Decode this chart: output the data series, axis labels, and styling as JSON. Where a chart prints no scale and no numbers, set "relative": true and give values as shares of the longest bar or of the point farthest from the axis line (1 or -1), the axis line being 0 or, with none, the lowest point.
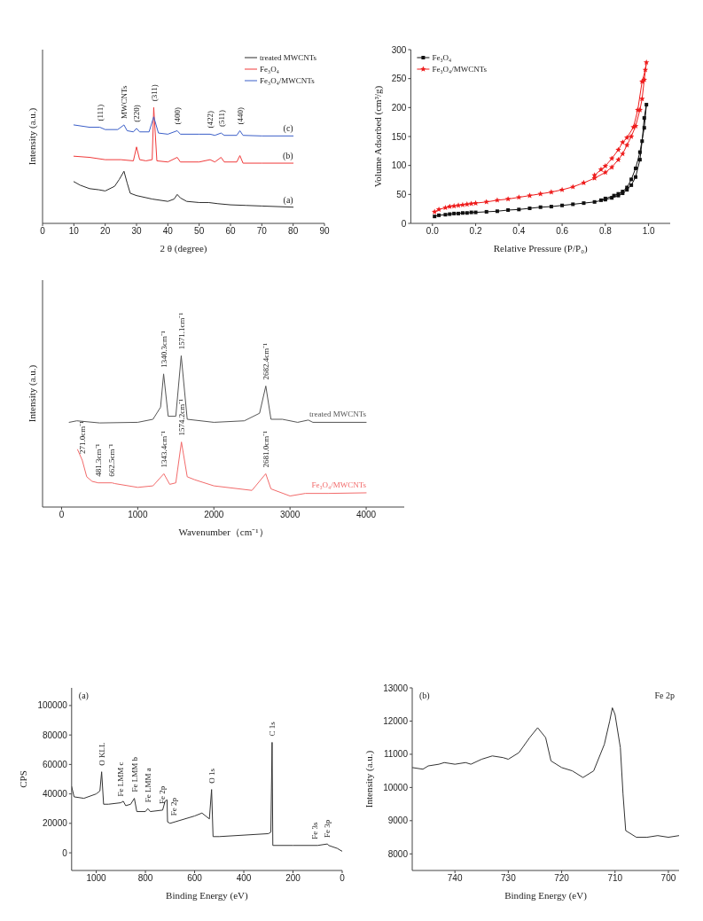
{
  "chart_data": [
    {
      "type": "line",
      "relative": true,
      "xlabel": "2 θ (degree)",
      "ylabel": "Intensity (a.u.)",
      "xlim": [
        0,
        90
      ],
      "xticks": [
        0,
        10,
        20,
        30,
        40,
        50,
        60,
        70,
        80,
        90
      ],
      "legend": "top right",
      "series": [
        {
          "name": "treated MWCNTs",
          "color": "#2b2b2b",
          "x": [
            10,
            12,
            15,
            18,
            20,
            23,
            24.5,
            26,
            27,
            28,
            30,
            35,
            40,
            42,
            43,
            44,
            46,
            50,
            53,
            56,
            60,
            65,
            70,
            75,
            80
          ],
          "values": [
            0.36,
            0.33,
            0.3,
            0.29,
            0.28,
            0.32,
            0.38,
            0.45,
            0.35,
            0.26,
            0.24,
            0.21,
            0.19,
            0.21,
            0.25,
            0.22,
            0.19,
            0.18,
            0.18,
            0.17,
            0.16,
            0.155,
            0.15,
            0.145,
            0.14
          ]
        },
        {
          "name": "Fe₃O₄",
          "color": "#f03a3a",
          "x": [
            10,
            15,
            20,
            25,
            29,
            30,
            31,
            33,
            35,
            35.5,
            36.5,
            40,
            43,
            44,
            50,
            53.5,
            55,
            57,
            58,
            62,
            63,
            64,
            70,
            75,
            80
          ],
          "values": [
            0.58,
            0.57,
            0.55,
            0.55,
            0.54,
            0.66,
            0.55,
            0.54,
            0.55,
            1.0,
            0.54,
            0.53,
            0.57,
            0.53,
            0.53,
            0.55,
            0.53,
            0.57,
            0.53,
            0.53,
            0.585,
            0.52,
            0.52,
            0.52,
            0.52
          ]
        },
        {
          "name": "Fe₃O₄/MWCNTs",
          "color": "#3a5ec8",
          "x": [
            10,
            15,
            18.3,
            20,
            24,
            26,
            27,
            29,
            30,
            31,
            34,
            35.5,
            37,
            40,
            43,
            44,
            50,
            53.5,
            55,
            57,
            58,
            62,
            63,
            64,
            70,
            75,
            80
          ],
          "values": [
            0.85,
            0.83,
            0.83,
            0.81,
            0.81,
            0.85,
            0.8,
            0.79,
            0.82,
            0.79,
            0.79,
            0.92,
            0.78,
            0.77,
            0.8,
            0.77,
            0.77,
            0.77,
            0.76,
            0.78,
            0.76,
            0.76,
            0.8,
            0.76,
            0.755,
            0.755,
            0.755
          ]
        }
      ],
      "annotations": [
        {
          "text": "(111)",
          "x": 18.3,
          "y": 0.83
        },
        {
          "text": "MWCNTs",
          "x": 26,
          "y": 0.85
        },
        {
          "text": "(220)",
          "x": 30,
          "y": 0.82
        },
        {
          "text": "(311)",
          "x": 35.5,
          "y": 1.0
        },
        {
          "text": "(400)",
          "x": 43,
          "y": 0.8
        },
        {
          "text": "(422)",
          "x": 53.5,
          "y": 0.77
        },
        {
          "text": "(511)",
          "x": 57,
          "y": 0.78
        },
        {
          "text": "(440)",
          "x": 63,
          "y": 0.8
        },
        "(a)",
        "(b)",
        "(c)"
      ]
    },
    {
      "type": "line",
      "xlabel": "Relative Pressure (P/P₀)",
      "ylabel": "Volume Adsorbed (cm³/g)",
      "xlim": [
        -0.1,
        1.1
      ],
      "xticks": [
        {
          "value": 0,
          "label": "0.0"
        },
        {
          "value": 0.2,
          "label": "0.2"
        },
        {
          "value": 0.4,
          "label": "0.4"
        },
        {
          "value": 0.6,
          "label": "0.6"
        },
        {
          "value": 0.8,
          "label": "0.8"
        },
        {
          "value": 1,
          "label": "1.0"
        }
      ],
      "ylim": [
        0,
        300
      ],
      "yticks": [
        0,
        50,
        100,
        150,
        200,
        250,
        300
      ],
      "legend": "top left",
      "series": [
        {
          "name": "Fe₃O₄",
          "color": "#111111",
          "marker": "square",
          "x": [
            0.01,
            0.03,
            0.06,
            0.08,
            0.1,
            0.12,
            0.14,
            0.16,
            0.18,
            0.2,
            0.25,
            0.3,
            0.35,
            0.4,
            0.45,
            0.5,
            0.55,
            0.6,
            0.65,
            0.7,
            0.75,
            0.8,
            0.83,
            0.86,
            0.88,
            0.9,
            0.92,
            0.94,
            0.96,
            0.97,
            0.98,
            0.99,
            0.98,
            0.96,
            0.94,
            0.92,
            0.9,
            0.88,
            0.86,
            0.84,
            0.8,
            0.78
          ],
          "values": [
            12,
            14,
            15,
            16,
            17,
            17,
            18,
            18,
            19,
            19,
            20,
            21,
            23,
            24,
            26,
            28,
            29,
            31,
            33,
            35,
            37,
            41,
            44,
            48,
            52,
            58,
            66,
            80,
            110,
            142,
            182,
            205,
            165,
            123,
            95,
            76,
            62,
            55,
            51,
            48,
            43,
            40
          ]
        },
        {
          "name": "Fe₃O₄/MWCNTs",
          "color": "#ee1c1c",
          "marker": "star",
          "x": [
            0.01,
            0.03,
            0.06,
            0.08,
            0.1,
            0.12,
            0.14,
            0.16,
            0.18,
            0.2,
            0.25,
            0.3,
            0.35,
            0.4,
            0.45,
            0.5,
            0.55,
            0.6,
            0.65,
            0.7,
            0.75,
            0.8,
            0.83,
            0.86,
            0.88,
            0.9,
            0.92,
            0.94,
            0.96,
            0.97,
            0.98,
            0.99,
            0.985,
            0.97,
            0.95,
            0.93,
            0.9,
            0.88,
            0.86,
            0.83,
            0.8,
            0.78,
            0.75
          ],
          "values": [
            20,
            24,
            27,
            29,
            30,
            31,
            32,
            33,
            34,
            35,
            37,
            40,
            42,
            45,
            48,
            51,
            54,
            58,
            63,
            70,
            78,
            88,
            97,
            110,
            120,
            135,
            150,
            168,
            196,
            215,
            248,
            278,
            265,
            245,
            196,
            166,
            148,
            140,
            127,
            112,
            99,
            93,
            83
          ]
        }
      ]
    },
    {
      "type": "line",
      "relative": true,
      "xlabel": "Wavenumber（cm⁻¹）",
      "ylabel": "Intensity (a.u.)",
      "xlim": [
        -250,
        4500
      ],
      "xticks": [
        0,
        1000,
        2000,
        3000,
        4000
      ],
      "legend": false,
      "series": [
        {
          "name": "treated MWCNTs",
          "color": "#555555",
          "x": [
            100,
            200,
            500,
            1000,
            1200,
            1300,
            1340,
            1400,
            1500,
            1571,
            1650,
            2000,
            2400,
            2600,
            2682,
            2750,
            2900,
            2950,
            3100,
            3240,
            3300,
            4000
          ],
          "values": [
            0.56,
            0.57,
            0.556,
            0.56,
            0.58,
            0.66,
            0.88,
            0.6,
            0.6,
            1.0,
            0.58,
            0.56,
            0.57,
            0.62,
            0.8,
            0.58,
            0.58,
            0.575,
            0.56,
            0.575,
            0.56,
            0.56
          ]
        },
        {
          "name": "Fe₃O₄/MWCNTs",
          "color": "#f26a6a",
          "x": [
            210,
            271,
            330,
            400,
            481,
            600,
            662,
            700,
            1000,
            1200,
            1343,
            1420,
            1500,
            1574,
            1650,
            1750,
            2000,
            2500,
            2681,
            2750,
            3000,
            3200,
            3500,
            4000
          ],
          "values": [
            0.38,
            0.31,
            0.2,
            0.17,
            0.16,
            0.16,
            0.16,
            0.155,
            0.13,
            0.14,
            0.22,
            0.15,
            0.16,
            0.43,
            0.2,
            0.18,
            0.14,
            0.11,
            0.22,
            0.12,
            0.073,
            0.09,
            0.09,
            0.094
          ]
        }
      ],
      "annotations": [
        {
          "text": "1340.3cm⁻¹",
          "x": 1340,
          "y": 0.88
        },
        {
          "text": "1571.1cm⁻¹",
          "x": 1571,
          "y": 1.0
        },
        {
          "text": "2682.4cm⁻¹",
          "x": 2682,
          "y": 0.8
        },
        {
          "text": "271.0cm⁻¹",
          "x": 271,
          "y": 0.31
        },
        {
          "text": "481.3cm⁻¹",
          "x": 481,
          "y": 0.16
        },
        {
          "text": "662.5cm⁻¹",
          "x": 662,
          "y": 0.16
        },
        {
          "text": "1343.4cm⁻¹",
          "x": 1343,
          "y": 0.22
        },
        {
          "text": "1574.2cm⁻¹",
          "x": 1574,
          "y": 0.43
        },
        {
          "text": "2681.0cm⁻¹",
          "x": 2681,
          "y": 0.22
        }
      ]
    },
    {
      "type": "line",
      "xlabel": "Binding Energy (eV)",
      "ylabel": "CPS",
      "xlim": [
        1100,
        0
      ],
      "xticks": [
        1000,
        800,
        600,
        400,
        200,
        0
      ],
      "ylim": [
        -12000,
        112000
      ],
      "yticks": [
        0,
        20000,
        40000,
        60000,
        80000,
        100000
      ],
      "color": "#333333",
      "x": [
        1100,
        1090,
        1050,
        1000,
        985,
        978,
        970,
        950,
        900,
        890,
        880,
        860,
        845,
        835,
        800,
        790,
        780,
        730,
        720,
        712,
        710,
        700,
        600,
        570,
        540,
        531,
        525,
        500,
        400,
        300,
        290,
        285,
        282,
        200,
        100,
        60,
        55,
        20,
        0
      ],
      "values": [
        45000,
        38000,
        37000,
        40000,
        42000,
        55000,
        33000,
        33000,
        34000,
        35000,
        32000,
        33000,
        37000,
        28000,
        28000,
        30000,
        28000,
        29000,
        35000,
        36000,
        21000,
        20000,
        25000,
        27000,
        23000,
        43000,
        11000,
        11000,
        12000,
        13000,
        14000,
        75000,
        5000,
        5000,
        5000,
        6000,
        5000,
        3000,
        1000
      ],
      "annotations": [
        "(a)",
        {
          "text": "O KLL",
          "x": 978,
          "y": 55000
        },
        {
          "text": "Fe LMM c",
          "x": 900,
          "y": 34000
        },
        {
          "text": "Fe LMM b",
          "x": 845,
          "y": 37000
        },
        {
          "text": "Fe LMM a",
          "x": 790,
          "y": 30000
        },
        {
          "text": "Fe 2p",
          "x": 733,
          "y": 29000
        },
        {
          "text": "Fe 2p",
          "x": 686,
          "y": 21000
        },
        {
          "text": "O 1s",
          "x": 531,
          "y": 43000
        },
        {
          "text": "C 1s",
          "x": 285,
          "y": 75000
        },
        {
          "text": "Fe 3s",
          "x": 114,
          "y": 5000
        },
        {
          "text": "Fe 3p",
          "x": 61,
          "y": 6000
        }
      ]
    },
    {
      "type": "line",
      "xlabel": "Binding Energy (eV)",
      "ylabel": "Intensity (a.u.)",
      "xlim": [
        748,
        698
      ],
      "xticks": [
        740,
        730,
        720,
        710,
        700
      ],
      "ylim": [
        7500,
        13000
      ],
      "yticks": [
        8000,
        9000,
        10000,
        11000,
        12000,
        13000
      ],
      "color": "#333333",
      "x": [
        748,
        746,
        745,
        743,
        742,
        740,
        738,
        737,
        735,
        733,
        731,
        730,
        728,
        726,
        724.5,
        723,
        722,
        720,
        718,
        716,
        714,
        712,
        711,
        710.5,
        710,
        709,
        708.5,
        708,
        706,
        704,
        702,
        700,
        698
      ],
      "values": [
        10600,
        10550,
        10650,
        10700,
        10750,
        10700,
        10750,
        10700,
        10850,
        10950,
        10900,
        10850,
        11050,
        11500,
        11800,
        11500,
        10800,
        10600,
        10500,
        10300,
        10500,
        11300,
        12000,
        12400,
        12200,
        11200,
        9800,
        8700,
        8500,
        8500,
        8550,
        8500,
        8550
      ],
      "annotations": [
        "(b)",
        "Fe 2p"
      ]
    }
  ]
}
